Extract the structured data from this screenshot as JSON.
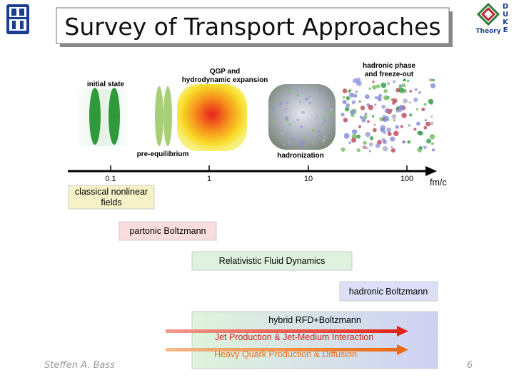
{
  "header": {
    "title": "Survey of Transport Approaches",
    "logo_text": "Theory",
    "logo_letters": [
      "D",
      "U",
      "K",
      "E"
    ]
  },
  "stages": {
    "initial": [
      "initial state"
    ],
    "qgp": [
      "QGP and",
      "hydrodynamic expansion"
    ],
    "hadronic": [
      "hadronic phase",
      "and freeze-out"
    ],
    "pre": [
      "pre-equilibrium"
    ],
    "hadronization": [
      "hadronization"
    ]
  },
  "axis": {
    "ticks": [
      "0.1",
      "1",
      "10",
      "100"
    ],
    "unit": "fm/c"
  },
  "approaches": {
    "classical": [
      "classical nonlinear",
      "fields"
    ],
    "partonic": "partonic Boltzmann",
    "rfd": "Relativistic Fluid Dynamics",
    "hadronic": "hadronic Boltzmann",
    "hybrid": "hybrid RFD+Boltzmann",
    "jet": "Jet Production & Jet-Medium Interaction",
    "heavy": "Heavy Quark Production & Diffusion"
  },
  "footer": {
    "author": "Steffen A. Bass",
    "page": "6"
  }
}
